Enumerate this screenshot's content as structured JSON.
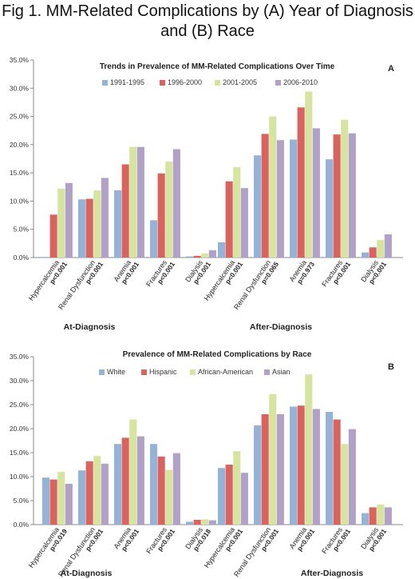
{
  "figure": {
    "title_line1": "Fig 1. MM-Related Complications by (A) Year of Diagnosis",
    "title_line2": "and (B) Race"
  },
  "chart_data": [
    {
      "id": "A",
      "type": "bar",
      "title": "Trends in Prevalence of MM-Related Complications Over Time",
      "panel_letter": "A",
      "ylim": [
        0,
        35
      ],
      "yticks": [
        "0.0%",
        "5.0%",
        "10.0%",
        "15.0%",
        "20.0%",
        "25.0%",
        "30.0%",
        "35.0%"
      ],
      "legend_position": "top",
      "grid": false,
      "groups": [
        {
          "label": "At-Diagnosis",
          "categories": [
            "Hypercalcemia",
            "Renal Dysfunction",
            "Anemia",
            "Fractures",
            "Dialysis"
          ],
          "pvalues": [
            "p<0.001",
            "p<0.001",
            "p<0.001",
            "p<0.001",
            "p<0.001"
          ]
        },
        {
          "label": "After-Diagnosis",
          "categories": [
            "Hypercalcemia",
            "Renal Dysfunction",
            "Anemia",
            "Fractures",
            "Dialysis"
          ],
          "pvalues": [
            "p<0.001",
            "p=0.065",
            "p=0.973",
            "p<0.001",
            "p<0.001"
          ]
        }
      ],
      "series": [
        {
          "name": "1991-1995",
          "color": "#95b3d7",
          "values": [
            0.1,
            10.3,
            11.9,
            6.6,
            0.2,
            2.7,
            18.1,
            20.9,
            17.4,
            0.9
          ]
        },
        {
          "name": "1996-2000",
          "color": "#d9635f",
          "values": [
            7.6,
            10.4,
            16.5,
            14.9,
            0.3,
            13.5,
            21.9,
            26.6,
            21.8,
            1.8
          ]
        },
        {
          "name": "2001-2005",
          "color": "#d7e4a0",
          "values": [
            12.2,
            11.9,
            19.6,
            17.0,
            0.7,
            16.0,
            25.0,
            29.4,
            24.4,
            3.1
          ]
        },
        {
          "name": "2006-2010",
          "color": "#b1a0c7",
          "values": [
            13.2,
            14.1,
            19.6,
            19.2,
            1.3,
            12.3,
            20.8,
            22.9,
            22.0,
            4.1
          ]
        }
      ]
    },
    {
      "id": "B",
      "type": "bar",
      "title": "Prevalence of MM-Related Complications by Race",
      "panel_letter": "B",
      "ylim": [
        0,
        35
      ],
      "yticks": [
        "0.0%",
        "5.0%",
        "10.0%",
        "15.0%",
        "20.0%",
        "25.0%",
        "30.0%",
        "35.0%"
      ],
      "legend_position": "top",
      "grid": false,
      "groups": [
        {
          "label": "At-Diagnosis",
          "categories": [
            "Hypercalcemia",
            "Renal Dysfunction",
            "Anemia",
            "Fractures",
            "Dialysis"
          ],
          "pvalues": [
            "p=0.019",
            "p<0.001",
            "p<0.001",
            "p<0.001",
            "p=0.018"
          ]
        },
        {
          "label": "After-Diagnosis",
          "categories": [
            "Hypercalcemia",
            "Renal Dysfunction",
            "Anemia",
            "Fractures",
            "Dialysis"
          ],
          "pvalues": [
            "p<0.001",
            "p<0.001",
            "p<0.001",
            "p<0.001",
            "p<0.001"
          ]
        }
      ],
      "series": [
        {
          "name": "White",
          "color": "#95b3d7",
          "values": [
            9.8,
            11.3,
            16.8,
            16.8,
            0.6,
            11.8,
            20.7,
            24.6,
            23.5,
            2.4
          ]
        },
        {
          "name": "Hispanic",
          "color": "#d9635f",
          "values": [
            9.4,
            13.2,
            18.1,
            14.2,
            1.0,
            12.5,
            23.0,
            24.8,
            21.9,
            3.6
          ]
        },
        {
          "name": "African-American",
          "color": "#d7e4a0",
          "values": [
            11.0,
            14.3,
            21.9,
            11.4,
            1.1,
            15.3,
            27.2,
            31.3,
            16.8,
            4.2
          ]
        },
        {
          "name": "Asian",
          "color": "#b1a0c7",
          "values": [
            8.5,
            12.7,
            18.4,
            14.9,
            0.9,
            10.8,
            23.0,
            24.1,
            19.9,
            3.6
          ]
        }
      ]
    }
  ]
}
